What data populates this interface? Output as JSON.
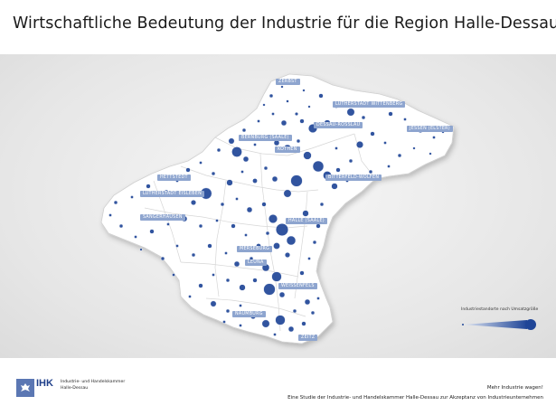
{
  "title": "Wirtschaftliche Bedeutung der Industrie für die Region Halle-Dessau",
  "cities": [
    {
      "name": "ZERBST"
    },
    {
      "name": "LUTHERSTADT WITTENBERG"
    },
    {
      "name": "DESSAU-ROSSLAU"
    },
    {
      "name": "JESSEN (ELSTER)"
    },
    {
      "name": "BERNBURG (SAALE)"
    },
    {
      "name": "KÖTHEN"
    },
    {
      "name": "HETTSTEDT"
    },
    {
      "name": "BITTERFELD-WOLFEN"
    },
    {
      "name": "LUTHERSTADT EISLEBEN"
    },
    {
      "name": "SANGERHAUSEN"
    },
    {
      "name": "HALLE (SAALE)"
    },
    {
      "name": "MERSEBURG"
    },
    {
      "name": "LEUNA"
    },
    {
      "name": "WEISSENFELS"
    },
    {
      "name": "NAUMBURG"
    },
    {
      "name": "ZEITZ"
    }
  ],
  "legend": {
    "label": "Industriestandorte nach Umsatzgröße"
  },
  "colors": {
    "marker": "#1f4597",
    "label_bg": "#8ea5cf",
    "region_fill": "#ffffff",
    "background": "#e6e6e6"
  },
  "footer": {
    "logo": "IHK",
    "logo_line1": "Industrie- und Handelskammer",
    "logo_line2": "Halle-Dessau",
    "line1": "Mehr Industrie wagen!",
    "line2": "Eine Studie der Industrie- und Handelskammer Halle-Dessau zur Akzeptanz von Industrieunternehmen"
  }
}
